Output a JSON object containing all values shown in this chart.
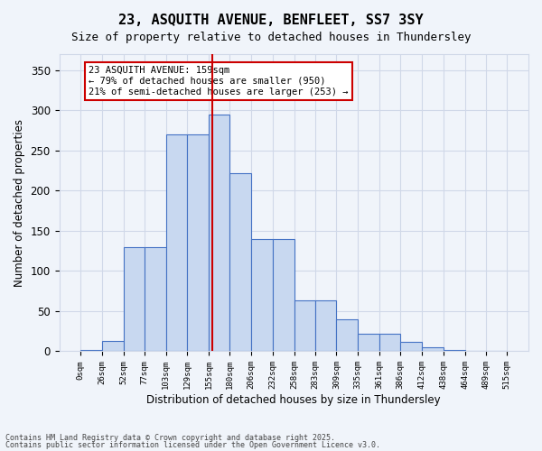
{
  "title1": "23, ASQUITH AVENUE, BENFLEET, SS7 3SY",
  "title2": "Size of property relative to detached houses in Thundersley",
  "xlabel": "Distribution of detached houses by size in Thundersley",
  "ylabel": "Number of detached properties",
  "bin_edges": [
    0,
    26,
    52,
    77,
    103,
    129,
    155,
    180,
    206,
    232,
    258,
    283,
    309,
    335,
    361,
    386,
    412,
    438,
    464,
    489,
    515
  ],
  "bar_heights": [
    2,
    13,
    130,
    130,
    270,
    270,
    295,
    222,
    140,
    140,
    63,
    63,
    40,
    22,
    22,
    12,
    5,
    2,
    1,
    1
  ],
  "bar_color": "#c8d8f0",
  "bar_edge_color": "#4472c4",
  "grid_color": "#d0d8e8",
  "vline_x": 159,
  "vline_color": "#cc0000",
  "annotation_text": "23 ASQUITH AVENUE: 159sqm\n← 79% of detached houses are smaller (950)\n21% of semi-detached houses are larger (253) →",
  "annotation_box_color": "white",
  "annotation_box_edge_color": "#cc0000",
  "ylim": [
    0,
    370
  ],
  "yticks": [
    0,
    50,
    100,
    150,
    200,
    250,
    300,
    350
  ],
  "footer1": "Contains HM Land Registry data © Crown copyright and database right 2025.",
  "footer2": "Contains public sector information licensed under the Open Government Licence v3.0.",
  "bg_color": "#f0f4fa"
}
